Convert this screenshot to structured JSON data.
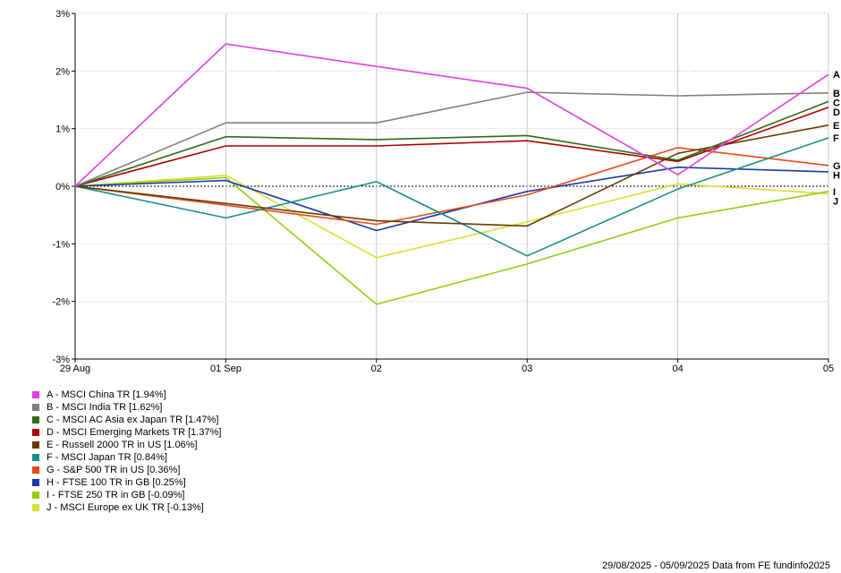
{
  "chart_data": {
    "type": "line",
    "x": [
      "29 Aug",
      "01 Sep",
      "02",
      "03",
      "04",
      "05"
    ],
    "ylim": [
      -3,
      3
    ],
    "yticks": [
      3,
      2,
      1,
      0,
      -1,
      -2,
      -3
    ],
    "ytick_labels": [
      "3%",
      "2%",
      "1%",
      "0%",
      "-1%",
      "-2%",
      "-3%"
    ],
    "grid": true,
    "legend_position": "bottom-left",
    "series": [
      {
        "key": "A",
        "label": "A - MSCI China TR [1.94%]",
        "color": "#e040e0",
        "values": [
          0,
          2.47,
          2.08,
          1.7,
          0.2,
          1.94
        ]
      },
      {
        "key": "B",
        "label": "B - MSCI India TR [1.62%]",
        "color": "#808080",
        "values": [
          0,
          1.1,
          1.1,
          1.63,
          1.57,
          1.62
        ]
      },
      {
        "key": "C",
        "label": "C - MSCI AC Asia ex Japan TR [1.47%]",
        "color": "#2e6b12",
        "values": [
          0,
          0.86,
          0.81,
          0.88,
          0.45,
          1.47
        ]
      },
      {
        "key": "D",
        "label": "D - MSCI Emerging Markets TR [1.37%]",
        "color": "#b00000",
        "values": [
          0,
          0.7,
          0.7,
          0.79,
          0.43,
          1.37
        ]
      },
      {
        "key": "E",
        "label": "E - Russell 2000 TR in US [1.06%]",
        "color": "#6b3a00",
        "values": [
          0,
          -0.3,
          -0.6,
          -0.69,
          0.57,
          1.06
        ]
      },
      {
        "key": "F",
        "label": "F - MSCI Japan TR [0.84%]",
        "color": "#1a9080",
        "values": [
          0,
          -0.55,
          0.08,
          -1.21,
          -0.05,
          0.84
        ]
      },
      {
        "key": "G",
        "label": "G - S&P 500 TR in US [0.36%]",
        "color": "#e84a1a",
        "values": [
          0,
          -0.33,
          -0.66,
          -0.15,
          0.67,
          0.36
        ]
      },
      {
        "key": "H",
        "label": "H - FTSE 100 TR in GB [0.25%]",
        "color": "#1c3aa8",
        "values": [
          0,
          0.1,
          -0.77,
          -0.09,
          0.33,
          0.25
        ]
      },
      {
        "key": "I",
        "label": "I - FTSE 250 TR in GB [-0.09%]",
        "color": "#90d010",
        "values": [
          0,
          0.15,
          -2.05,
          -1.35,
          -0.55,
          -0.09
        ]
      },
      {
        "key": "J",
        "label": "J - MSCI Europe ex UK TR [-0.13%]",
        "color": "#d8e030",
        "values": [
          0,
          0.19,
          -1.24,
          -0.62,
          0.04,
          -0.13
        ]
      }
    ]
  },
  "footer": "29/08/2025 - 05/09/2025 Data from FE fundinfo2025"
}
